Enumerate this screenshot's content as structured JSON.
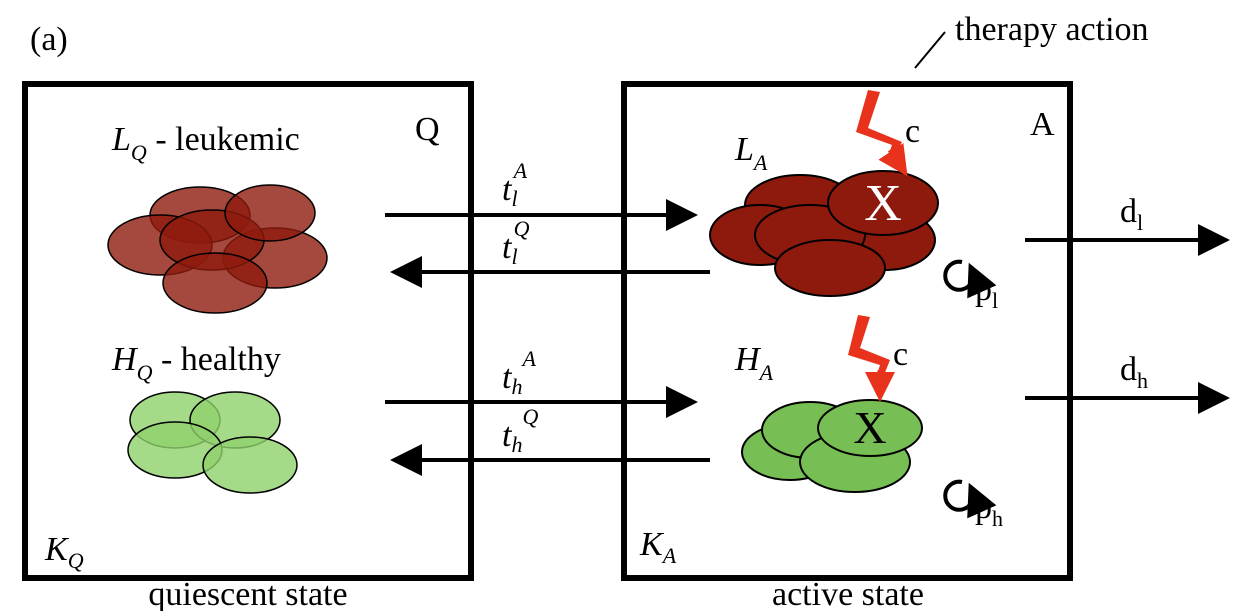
{
  "panel_label": "(a)",
  "therapy_label": "therapy action",
  "boxes": [
    {
      "corner": "Q",
      "capacity": {
        "base": "K",
        "sub": "Q"
      },
      "caption": "quiescent state"
    },
    {
      "corner": "A",
      "capacity": {
        "base": "K",
        "sub": "A"
      },
      "caption": "active state"
    }
  ],
  "quiescent_cells": [
    {
      "base": "L",
      "sub": "Q",
      "rest": " - leukemic"
    },
    {
      "base": "H",
      "sub": "Q",
      "rest": " - healthy"
    }
  ],
  "active_cells": [
    {
      "base": "L",
      "sub": "A"
    },
    {
      "base": "H",
      "sub": "A"
    }
  ],
  "transitions": [
    {
      "base": "t",
      "sub": "l",
      "sup": "A"
    },
    {
      "base": "t",
      "sub": "l",
      "sup": "Q"
    },
    {
      "base": "t",
      "sub": "h",
      "sup": "A"
    },
    {
      "base": "t",
      "sub": "h",
      "sup": "Q"
    }
  ],
  "therapy_hits": [
    {
      "label": "c",
      "mark": "X"
    },
    {
      "label": "c",
      "mark": "X"
    }
  ],
  "death": [
    {
      "base": "d",
      "sub": "l"
    },
    {
      "base": "d",
      "sub": "h"
    }
  ],
  "proliferation": [
    {
      "base": "p",
      "sub": "l"
    },
    {
      "base": "p",
      "sub": "h"
    }
  ]
}
